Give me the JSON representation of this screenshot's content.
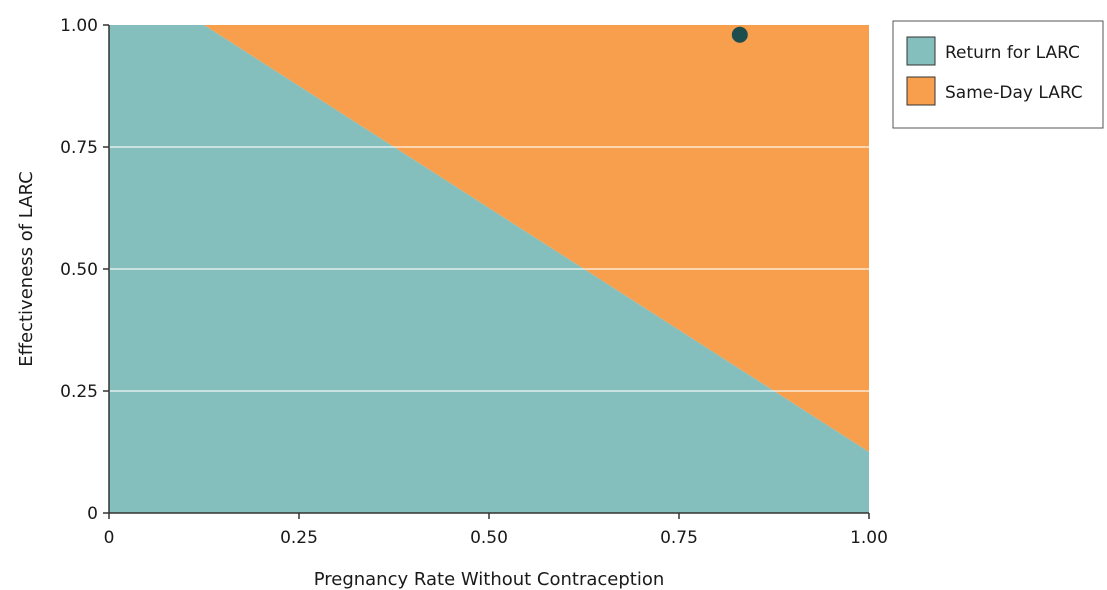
{
  "chart_data": {
    "type": "area",
    "title": "",
    "xlabel": "Pregnancy Rate Without Contraception",
    "ylabel": "Effectiveness of LARC",
    "xlim": [
      0,
      1
    ],
    "ylim": [
      0,
      1
    ],
    "x_ticks": [
      "0",
      "0.25",
      "0.50",
      "0.75",
      "1.00"
    ],
    "y_ticks": [
      "0",
      "0.25",
      "0.50",
      "0.75",
      "1.00"
    ],
    "grid": true,
    "legend_position": "top-right, outside plot",
    "series": [
      {
        "name": "Return for LARC",
        "color": "#84bfbd",
        "region": "below boundary",
        "boundary": {
          "x": [
            0.125,
            1.0
          ],
          "y": [
            1.0,
            0.125
          ]
        }
      },
      {
        "name": "Same-Day LARC",
        "color": "#f89f4d",
        "region": "above boundary",
        "boundary": {
          "x": [
            0.125,
            1.0
          ],
          "y": [
            1.0,
            0.125
          ]
        }
      }
    ],
    "points": [
      {
        "x": 0.83,
        "y": 0.98,
        "color": "#1e4d4d"
      }
    ]
  }
}
